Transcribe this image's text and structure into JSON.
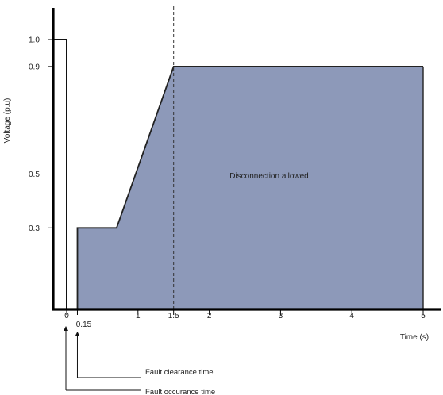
{
  "chart_data": {
    "type": "area",
    "xlabel": "Time (s)",
    "ylabel": "Voltage (p.u)",
    "xlim": [
      0,
      5
    ],
    "ylim": [
      0,
      1.0
    ],
    "x_ticks": [
      {
        "value": 0,
        "label": "0"
      },
      {
        "value": 0.15,
        "label": "0.15"
      },
      {
        "value": 1,
        "label": "1"
      },
      {
        "value": 1.5,
        "label": "1.5"
      },
      {
        "value": 2,
        "label": "2"
      },
      {
        "value": 3,
        "label": "3"
      },
      {
        "value": 4,
        "label": "4"
      },
      {
        "value": 5,
        "label": "5"
      }
    ],
    "y_ticks": [
      {
        "value": 1.0,
        "label": "1.0"
      },
      {
        "value": 0.9,
        "label": "0.9"
      },
      {
        "value": 0.5,
        "label": "0.5"
      },
      {
        "value": 0.3,
        "label": "0.3"
      }
    ],
    "pre_fault_line": {
      "x": [
        -0.15,
        0,
        0
      ],
      "y": [
        1.0,
        1.0,
        0
      ]
    },
    "region": {
      "label": "Disconnection allowed",
      "boundary_x": [
        0.15,
        0.15,
        0.7,
        1.5,
        5,
        5
      ],
      "boundary_y": [
        0,
        0.3,
        0.3,
        0.9,
        0.9,
        0
      ],
      "fill_color": "#8d99b9"
    },
    "reference_line_x": 1.5,
    "annotations": [
      {
        "text": "Fault clearance time",
        "x": 0.15
      },
      {
        "text": "Fault occurance time",
        "x": 0
      }
    ]
  }
}
